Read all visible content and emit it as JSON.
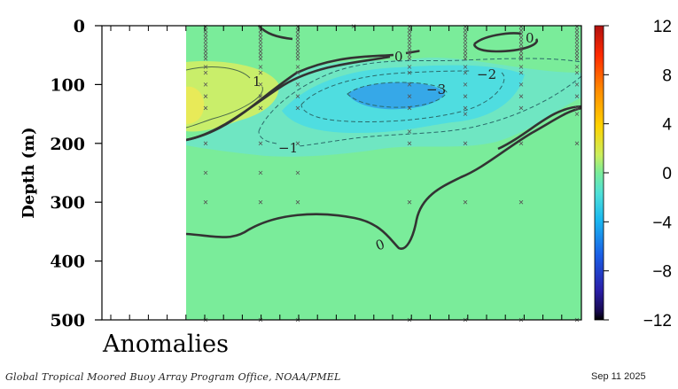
{
  "chart_data": {
    "type": "heatmap",
    "title": "Anomalies",
    "ylabel": "Depth (m)",
    "yticks": [
      0,
      100,
      200,
      300,
      400,
      500
    ],
    "ylim": [
      500,
      0
    ],
    "colorbar_ticks": [
      "12",
      "8",
      "4",
      "0",
      "−4",
      "−8",
      "−12"
    ],
    "colorbar_range": [
      -12,
      12
    ],
    "contour_labels": [
      "0",
      "0",
      "0",
      "1",
      "−1",
      "−2",
      "−3"
    ],
    "background_anomaly": 0,
    "features": [
      {
        "kind": "cold core",
        "min": -3,
        "depth": 115
      },
      {
        "kind": "warm patch",
        "max": 1,
        "depth": 115
      }
    ],
    "colors": {
      "zero_band": "#7aec9a",
      "warm_patch": "#c9ee6a",
      "cool_band": "#6fe6c2",
      "cold_band": "#4fdde0",
      "coldest": "#36a8e8"
    }
  },
  "footer": {
    "credit": "Global Tropical Moored Buoy Array Program Office, NOAA/PMEL",
    "date": "Sep 11 2025"
  }
}
